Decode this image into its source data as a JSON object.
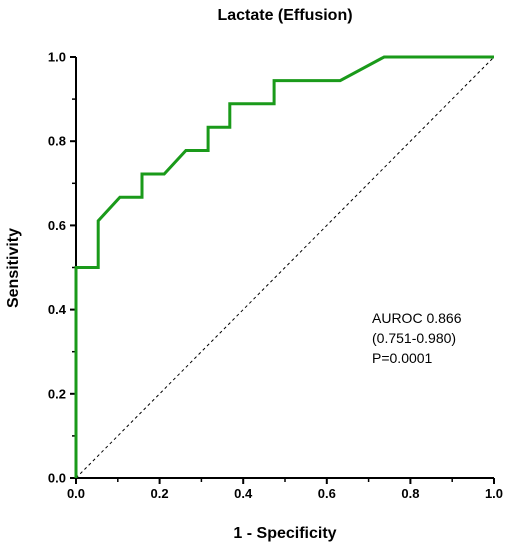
{
  "chart_data": {
    "type": "line",
    "title": "Lactate (Effusion)",
    "xlabel": "1 - Specificity",
    "ylabel": "Sensitivity",
    "xlim": [
      0,
      1
    ],
    "ylim": [
      0,
      1
    ],
    "xticks": [
      "0.0",
      "0.2",
      "0.4",
      "0.6",
      "0.8",
      "1.0"
    ],
    "yticks": [
      "0.0",
      "0.2",
      "0.4",
      "0.6",
      "0.8",
      "1.0"
    ],
    "grid": false,
    "series": [
      {
        "color": "#1a9a1a",
        "x": [
          0,
          0,
          0.053,
          0.053,
          0.105,
          0.158,
          0.158,
          0.211,
          0.263,
          0.316,
          0.316,
          0.368,
          0.368,
          0.474,
          0.474,
          0.632,
          0.737,
          1.0
        ],
        "y": [
          0,
          0.5,
          0.5,
          0.611,
          0.667,
          0.667,
          0.722,
          0.722,
          0.778,
          0.778,
          0.833,
          0.833,
          0.889,
          0.889,
          0.944,
          0.944,
          1.0,
          1.0
        ]
      }
    ],
    "reference_line": {
      "style": "dashed",
      "color": "#000000",
      "x": [
        0,
        1
      ],
      "y": [
        0,
        1
      ]
    },
    "annotation": [
      "AUROC 0.866",
      "(0.751-0.980)",
      "P=0.0001"
    ]
  }
}
